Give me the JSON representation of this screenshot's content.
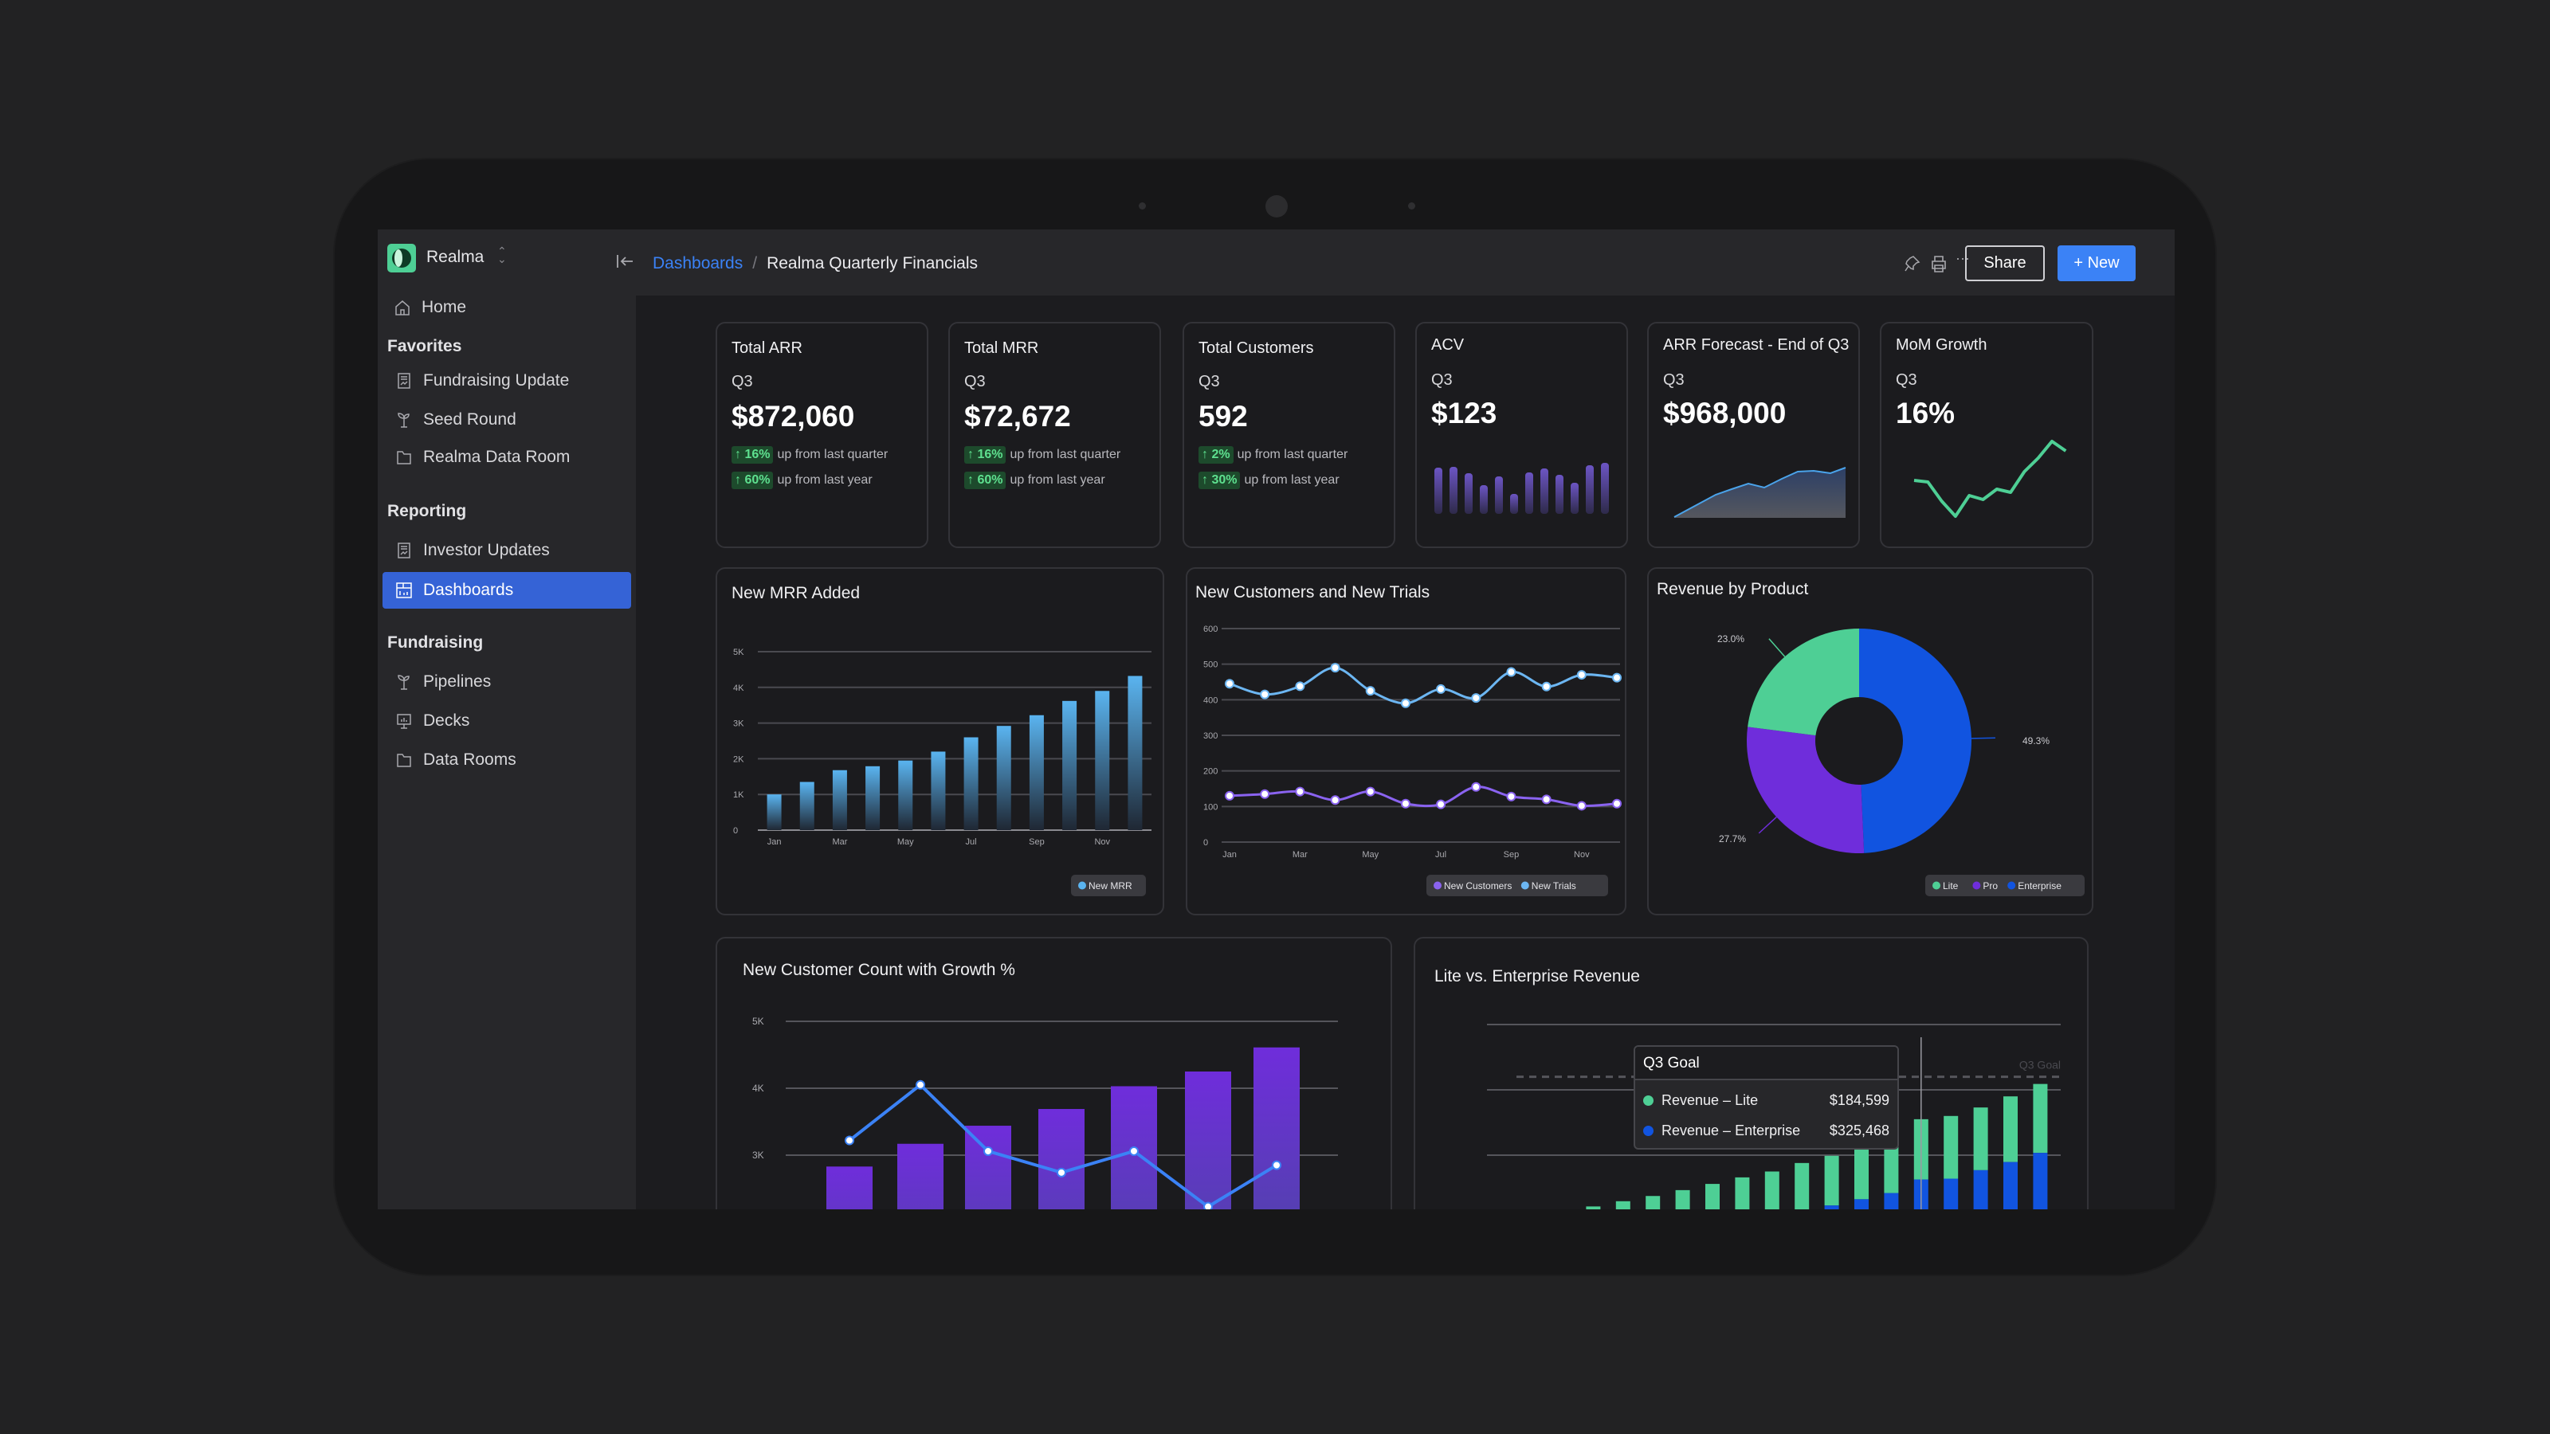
{
  "app": {
    "workspace": "Realma"
  },
  "breadcrumb": {
    "parent": "Dashboards",
    "separator": "/",
    "current": "Realma Quarterly Financials"
  },
  "toolbar": {
    "share": "Share",
    "new": "+ New"
  },
  "sidebar": {
    "home": "Home",
    "favorites": {
      "heading": "Favorites",
      "items": [
        "Fundraising Update",
        "Seed Round",
        "Realma Data Room"
      ]
    },
    "reporting": {
      "heading": "Reporting",
      "items": [
        "Investor Updates",
        "Dashboards"
      ]
    },
    "fundraising": {
      "heading": "Fundraising",
      "items": [
        "Pipelines",
        "Decks",
        "Data Rooms"
      ]
    },
    "active": "Dashboards"
  },
  "kpis": [
    {
      "title": "Total ARR",
      "period": "Q3",
      "value": "$872,060",
      "changes": [
        {
          "pct": "16%",
          "text": "up from last quarter"
        },
        {
          "pct": "60%",
          "text": "up from last year"
        }
      ]
    },
    {
      "title": "Total MRR",
      "period": "Q3",
      "value": "$72,672",
      "changes": [
        {
          "pct": "16%",
          "text": "up from last quarter"
        },
        {
          "pct": "60%",
          "text": "up from last year"
        }
      ]
    },
    {
      "title": "Total Customers",
      "period": "Q3",
      "value": "592",
      "changes": [
        {
          "pct": "2%",
          "text": "up from last quarter"
        },
        {
          "pct": "30%",
          "text": "up from last year"
        }
      ]
    },
    {
      "title": "ACV",
      "period": "Q3",
      "value": "$123",
      "sparkline": {
        "type": "bar",
        "values": [
          58,
          59,
          51,
          36,
          47,
          25,
          52,
          57,
          49,
          39,
          61,
          64
        ]
      }
    },
    {
      "title": "ARR Forecast - End of Q3",
      "period": "Q3",
      "value": "$968,000",
      "sparkline": {
        "type": "area",
        "values": [
          1,
          29,
          36,
          43,
          38,
          49,
          58,
          59,
          56,
          63
        ]
      }
    },
    {
      "title": "MoM Growth",
      "period": "Q3",
      "value": "16%",
      "sparkline": {
        "type": "line",
        "values": [
          48,
          46,
          22,
          3,
          29,
          24,
          37,
          33,
          59,
          76,
          97,
          85
        ]
      }
    }
  ],
  "colors": {
    "accent": "#3b82f6",
    "active_nav": "#3563d6",
    "up": "#5ee08f",
    "lite": "#4ecf95",
    "pro": "#6f2ddb",
    "enterprise": "#1154e0",
    "mrr": "#5ab4f0",
    "trials": "#6cb6f2",
    "customers": "#8a63f0"
  },
  "chart_data": [
    {
      "type": "bar",
      "title": "New MRR Added",
      "categories": [
        "Jan",
        "Feb",
        "Mar",
        "Apr",
        "May",
        "Jun",
        "Jul",
        "Aug",
        "Sep",
        "Oct",
        "Nov",
        "Dec"
      ],
      "x_tick_labels": [
        "Jan",
        "",
        "Mar",
        "",
        "May",
        "",
        "Jul",
        "",
        "Sep",
        "",
        "Nov",
        ""
      ],
      "series": [
        {
          "name": "New MRR",
          "values": [
            1000,
            1350,
            1680,
            1790,
            1950,
            2200,
            2600,
            2920,
            3220,
            3620,
            3900,
            4320
          ]
        }
      ],
      "ylim": [
        0,
        5000
      ],
      "y_ticks": [
        0,
        1000,
        2000,
        3000,
        4000,
        5000
      ],
      "y_tick_labels": [
        "0",
        "1K",
        "2K",
        "3K",
        "4K",
        "5K"
      ],
      "grid": true,
      "legend": "bottom-right"
    },
    {
      "type": "line",
      "title": "New Customers and New Trials",
      "categories": [
        "Jan",
        "Feb",
        "Mar",
        "Apr",
        "May",
        "Jun",
        "Jul",
        "Aug",
        "Sep",
        "Oct",
        "Nov",
        "Dec"
      ],
      "x_tick_labels": [
        "Jan",
        "",
        "Mar",
        "",
        "May",
        "",
        "Jul",
        "",
        "Sep",
        "",
        "Nov",
        ""
      ],
      "series": [
        {
          "name": "New Customers",
          "values": [
            130,
            135,
            142,
            118,
            142,
            108,
            106,
            155,
            128,
            120,
            102,
            108
          ]
        },
        {
          "name": "New Trials",
          "values": [
            445,
            415,
            438,
            490,
            425,
            390,
            430,
            405,
            478,
            437,
            470,
            462
          ]
        }
      ],
      "ylim": [
        0,
        600
      ],
      "y_ticks": [
        0,
        100,
        200,
        300,
        400,
        500,
        600
      ],
      "y_tick_labels": [
        "0",
        "100",
        "200",
        "300",
        "400",
        "500",
        "600"
      ],
      "grid": true,
      "legend": "bottom-right"
    },
    {
      "type": "pie",
      "title": "Revenue by Product",
      "donut": true,
      "slices": [
        {
          "name": "Enterprise",
          "value": 49.3,
          "label": "49.3%"
        },
        {
          "name": "Pro",
          "value": 27.7,
          "label": "27.7%"
        },
        {
          "name": "Lite",
          "value": 23.0,
          "label": "23.0%"
        }
      ],
      "legend_order": [
        "Lite",
        "Pro",
        "Enterprise"
      ],
      "legend": "bottom-right"
    },
    {
      "type": "bar",
      "title": "New Customer Count with Growth %",
      "bar_values": [
        2830,
        3170,
        3440,
        3690,
        4030,
        4250,
        4610
      ],
      "line_values": [
        3220,
        4050,
        3060,
        2740,
        3060,
        2230,
        2850
      ],
      "ylim": [
        0,
        5000
      ],
      "y_ticks": [
        3000,
        4000,
        5000
      ],
      "y_tick_labels": [
        "3K",
        "4K",
        "5K"
      ],
      "grid": true
    },
    {
      "type": "bar",
      "stacked": true,
      "title": "Lite vs. Enterprise Revenue",
      "series": [
        {
          "name": "Revenue – Lite",
          "values": [
            230000,
            243000,
            259000,
            275000,
            293000,
            312000,
            332000,
            350000,
            145000,
            152000,
            152000,
            152000,
            184599,
            192000,
            192000,
            201000,
            211000
          ]
        },
        {
          "name": "Revenue – Enterprise",
          "values": [
            0,
            0,
            0,
            0,
            0,
            0,
            0,
            0,
            231000,
            246000,
            265000,
            284000,
            325468,
            328000,
            354000,
            379000,
            407000
          ]
        }
      ],
      "y_gridlines": [
        200000,
        400000,
        600000,
        800000
      ],
      "goal": {
        "label": "Q3 Goal",
        "value": 640000
      },
      "tooltip": {
        "title": "Q3 Goal",
        "index": 12,
        "rows": [
          {
            "name": "Revenue – Lite",
            "value": "$184,599"
          },
          {
            "name": "Revenue – Enterprise",
            "value": "$325,468"
          }
        ]
      },
      "grid": true
    }
  ]
}
